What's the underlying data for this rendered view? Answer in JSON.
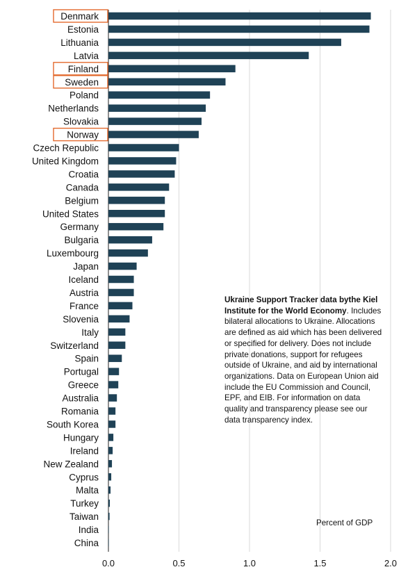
{
  "chart_data": {
    "type": "bar",
    "orientation": "horizontal",
    "categories": [
      "Denmark",
      "Estonia",
      "Lithuania",
      "Latvia",
      "Finland",
      "Sweden",
      "Poland",
      "Netherlands",
      "Slovakia",
      "Norway",
      "Czech Republic",
      "United Kingdom",
      "Croatia",
      "Canada",
      "Belgium",
      "United States",
      "Germany",
      "Bulgaria",
      "Luxembourg",
      "Japan",
      "Iceland",
      "Austria",
      "France",
      "Slovenia",
      "Italy",
      "Switzerland",
      "Spain",
      "Portugal",
      "Greece",
      "Australia",
      "Romania",
      "South Korea",
      "Hungary",
      "Ireland",
      "New Zealand",
      "Cyprus",
      "Malta",
      "Turkey",
      "Taiwan",
      "India",
      "China"
    ],
    "values": [
      1.86,
      1.85,
      1.65,
      1.42,
      0.9,
      0.83,
      0.72,
      0.69,
      0.66,
      0.64,
      0.5,
      0.48,
      0.47,
      0.43,
      0.4,
      0.4,
      0.39,
      0.31,
      0.28,
      0.2,
      0.18,
      0.18,
      0.17,
      0.15,
      0.12,
      0.12,
      0.095,
      0.075,
      0.07,
      0.06,
      0.05,
      0.05,
      0.035,
      0.03,
      0.025,
      0.02,
      0.015,
      0.01,
      0.008,
      0.003,
      0.002
    ],
    "highlighted": [
      "Denmark",
      "Finland",
      "Sweden",
      "Norway"
    ],
    "xlim": [
      0,
      2.0
    ],
    "xticks": [
      "0.0",
      "0.5",
      "1.0",
      "1.5",
      "2.0"
    ],
    "grid": true,
    "unit_label": "Percent of GDP"
  },
  "note": {
    "bold": "Ukraine Support Tracker data bythe Kiel Institute for the World Economy",
    "text": ". Includes bilateral allocations to Ukraine. Allocations are defined as aid which has been delivered or specified for delivery. Does not include private donations, support for refugees outside of Ukraine, and aid by international organizations. Data on European Union aid include the EU Commission and Council, EPF, and EIB. For information on data quality and transparency please see our data transparency index."
  },
  "colors": {
    "bar": "#1f4256",
    "highlight_box": "#e36a2e",
    "grid": "#d9d9d9"
  }
}
